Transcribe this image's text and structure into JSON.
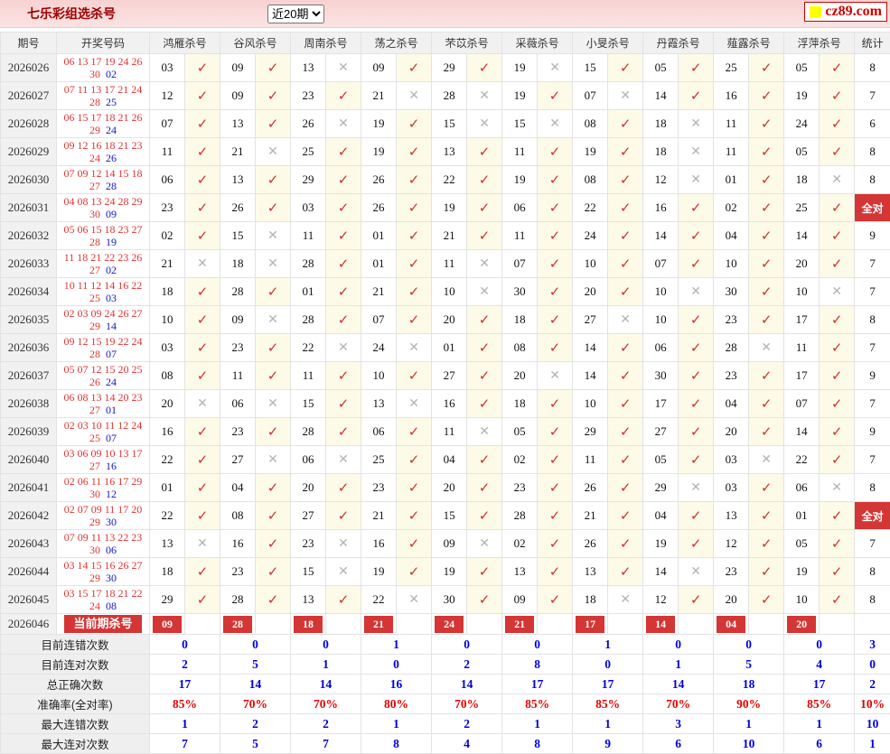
{
  "header": {
    "title": "七乐彩组选杀号",
    "period_option": "近20期",
    "logo_text": "cz89.com"
  },
  "table": {
    "col_headers": [
      "期号",
      "开奖号码"
    ],
    "expert_headers": [
      "鸿雁杀号",
      "谷风杀号",
      "周南杀号",
      "荡之杀号",
      "芣苡杀号",
      "采薇杀号",
      "小旻杀号",
      "丹霞杀号",
      "薤露杀号",
      "浮萍杀号"
    ],
    "stat_header": "统计",
    "all_correct_label": "全对",
    "check_icon": "✓",
    "cross_icon": "✕",
    "rows": [
      {
        "period": "2026026",
        "main": "06 13 17 19 24 26",
        "tail": "30",
        "special": "02",
        "picks": [
          "03",
          "09",
          "13",
          "09",
          "29",
          "19",
          "15",
          "05",
          "25",
          "05"
        ],
        "marks": [
          "v",
          "v",
          "x",
          "v",
          "v",
          "x",
          "v",
          "v",
          "v",
          "v"
        ],
        "stat": "8"
      },
      {
        "period": "2026027",
        "main": "07 11 13 17 21 24",
        "tail": "28",
        "special": "25",
        "picks": [
          "12",
          "09",
          "23",
          "21",
          "28",
          "19",
          "07",
          "14",
          "16",
          "19"
        ],
        "marks": [
          "v",
          "v",
          "v",
          "x",
          "x",
          "v",
          "x",
          "v",
          "v",
          "v"
        ],
        "stat": "7"
      },
      {
        "period": "2026028",
        "main": "06 15 17 18 21 26",
        "tail": "29",
        "special": "24",
        "picks": [
          "07",
          "13",
          "26",
          "19",
          "15",
          "15",
          "08",
          "18",
          "11",
          "24"
        ],
        "marks": [
          "v",
          "v",
          "x",
          "v",
          "x",
          "x",
          "v",
          "x",
          "v",
          "v"
        ],
        "stat": "6"
      },
      {
        "period": "2026029",
        "main": "09 12 16 18 21 23",
        "tail": "24",
        "special": "26",
        "picks": [
          "11",
          "21",
          "25",
          "19",
          "13",
          "11",
          "19",
          "18",
          "11",
          "05"
        ],
        "marks": [
          "v",
          "x",
          "v",
          "v",
          "v",
          "v",
          "v",
          "x",
          "v",
          "v"
        ],
        "stat": "8"
      },
      {
        "period": "2026030",
        "main": "07 09 12 14 15 18",
        "tail": "27",
        "special": "28",
        "picks": [
          "06",
          "13",
          "29",
          "26",
          "22",
          "19",
          "08",
          "12",
          "01",
          "18"
        ],
        "marks": [
          "v",
          "v",
          "v",
          "v",
          "v",
          "v",
          "v",
          "x",
          "v",
          "x"
        ],
        "stat": "8"
      },
      {
        "period": "2026031",
        "main": "04 08 13 24 28 29",
        "tail": "30",
        "special": "09",
        "picks": [
          "23",
          "26",
          "03",
          "26",
          "19",
          "06",
          "22",
          "16",
          "02",
          "25"
        ],
        "marks": [
          "v",
          "v",
          "v",
          "v",
          "v",
          "v",
          "v",
          "v",
          "v",
          "v"
        ],
        "stat": "全对"
      },
      {
        "period": "2026032",
        "main": "05 06 15 18 23 27",
        "tail": "28",
        "special": "19",
        "picks": [
          "02",
          "15",
          "11",
          "01",
          "21",
          "11",
          "24",
          "14",
          "04",
          "14"
        ],
        "marks": [
          "v",
          "x",
          "v",
          "v",
          "v",
          "v",
          "v",
          "v",
          "v",
          "v"
        ],
        "stat": "9"
      },
      {
        "period": "2026033",
        "main": "11 18 21 22 23 26",
        "tail": "27",
        "special": "02",
        "picks": [
          "21",
          "18",
          "28",
          "01",
          "11",
          "07",
          "10",
          "07",
          "10",
          "20"
        ],
        "marks": [
          "x",
          "x",
          "v",
          "v",
          "x",
          "v",
          "v",
          "v",
          "v",
          "v"
        ],
        "stat": "7"
      },
      {
        "period": "2026034",
        "main": "10 11 12 14 16 22",
        "tail": "25",
        "special": "03",
        "picks": [
          "18",
          "28",
          "01",
          "21",
          "10",
          "30",
          "20",
          "10",
          "30",
          "10"
        ],
        "marks": [
          "v",
          "v",
          "v",
          "v",
          "x",
          "v",
          "v",
          "x",
          "v",
          "x"
        ],
        "stat": "7"
      },
      {
        "period": "2026035",
        "main": "02 03 09 24 26 27",
        "tail": "29",
        "special": "14",
        "picks": [
          "10",
          "09",
          "28",
          "07",
          "20",
          "18",
          "27",
          "10",
          "23",
          "17"
        ],
        "marks": [
          "v",
          "x",
          "v",
          "v",
          "v",
          "v",
          "x",
          "v",
          "v",
          "v"
        ],
        "stat": "8"
      },
      {
        "period": "2026036",
        "main": "09 12 15 19 22 24",
        "tail": "28",
        "special": "07",
        "picks": [
          "03",
          "23",
          "22",
          "24",
          "01",
          "08",
          "14",
          "06",
          "28",
          "11"
        ],
        "marks": [
          "v",
          "v",
          "x",
          "x",
          "v",
          "v",
          "v",
          "v",
          "x",
          "v"
        ],
        "stat": "7"
      },
      {
        "period": "2026037",
        "main": "05 07 12 15 20 25",
        "tail": "26",
        "special": "24",
        "picks": [
          "08",
          "11",
          "11",
          "10",
          "27",
          "20",
          "14",
          "30",
          "23",
          "17"
        ],
        "marks": [
          "v",
          "v",
          "v",
          "v",
          "v",
          "x",
          "v",
          "v",
          "v",
          "v"
        ],
        "stat": "9"
      },
      {
        "period": "2026038",
        "main": "06 08 13 14 20 23",
        "tail": "27",
        "special": "01",
        "picks": [
          "20",
          "06",
          "15",
          "13",
          "16",
          "18",
          "10",
          "17",
          "04",
          "07"
        ],
        "marks": [
          "x",
          "x",
          "v",
          "x",
          "v",
          "v",
          "v",
          "v",
          "v",
          "v"
        ],
        "stat": "7"
      },
      {
        "period": "2026039",
        "main": "02 03 10 11 12 24",
        "tail": "25",
        "special": "07",
        "picks": [
          "16",
          "23",
          "28",
          "06",
          "11",
          "05",
          "29",
          "27",
          "20",
          "14"
        ],
        "marks": [
          "v",
          "v",
          "v",
          "v",
          "x",
          "v",
          "v",
          "v",
          "v",
          "v"
        ],
        "stat": "9"
      },
      {
        "period": "2026040",
        "main": "03 06 09 10 13 17",
        "tail": "27",
        "special": "16",
        "picks": [
          "22",
          "27",
          "06",
          "25",
          "04",
          "02",
          "11",
          "05",
          "03",
          "22"
        ],
        "marks": [
          "v",
          "x",
          "x",
          "v",
          "v",
          "v",
          "v",
          "v",
          "x",
          "v"
        ],
        "stat": "7"
      },
      {
        "period": "2026041",
        "main": "02 06 11 16 17 29",
        "tail": "30",
        "special": "12",
        "picks": [
          "01",
          "04",
          "20",
          "23",
          "20",
          "23",
          "26",
          "29",
          "03",
          "06"
        ],
        "marks": [
          "v",
          "v",
          "v",
          "v",
          "v",
          "v",
          "v",
          "x",
          "v",
          "x"
        ],
        "stat": "8"
      },
      {
        "period": "2026042",
        "main": "02 07 09 11 17 20",
        "tail": "29",
        "special": "30",
        "picks": [
          "22",
          "08",
          "27",
          "21",
          "15",
          "28",
          "21",
          "04",
          "13",
          "01"
        ],
        "marks": [
          "v",
          "v",
          "v",
          "v",
          "v",
          "v",
          "v",
          "v",
          "v",
          "v"
        ],
        "stat": "全对"
      },
      {
        "period": "2026043",
        "main": "07 09 11 13 22 23",
        "tail": "30",
        "special": "06",
        "picks": [
          "13",
          "16",
          "23",
          "16",
          "09",
          "02",
          "26",
          "19",
          "12",
          "05"
        ],
        "marks": [
          "x",
          "v",
          "x",
          "v",
          "x",
          "v",
          "v",
          "v",
          "v",
          "v"
        ],
        "stat": "7"
      },
      {
        "period": "2026044",
        "main": "03 14 15 16 26 27",
        "tail": "29",
        "special": "30",
        "picks": [
          "18",
          "23",
          "15",
          "19",
          "19",
          "13",
          "13",
          "14",
          "23",
          "19"
        ],
        "marks": [
          "v",
          "v",
          "x",
          "v",
          "v",
          "v",
          "v",
          "x",
          "v",
          "v"
        ],
        "stat": "8"
      },
      {
        "period": "2026045",
        "main": "03 15 17 18 21 22",
        "tail": "24",
        "special": "08",
        "picks": [
          "29",
          "28",
          "13",
          "22",
          "30",
          "09",
          "18",
          "12",
          "20",
          "10"
        ],
        "marks": [
          "v",
          "v",
          "v",
          "x",
          "v",
          "v",
          "x",
          "v",
          "v",
          "v"
        ],
        "stat": "8"
      }
    ],
    "current": {
      "period": "2026046",
      "label": "当前期杀号",
      "kills": [
        "09",
        "28",
        "18",
        "21",
        "24",
        "21",
        "17",
        "14",
        "04",
        "20"
      ],
      "stat": ""
    },
    "summary": [
      {
        "label": "目前连错次数",
        "values": [
          "0",
          "0",
          "0",
          "1",
          "0",
          "0",
          "1",
          "0",
          "0",
          "0"
        ],
        "total": "3",
        "color": "blue"
      },
      {
        "label": "目前连对次数",
        "values": [
          "2",
          "5",
          "1",
          "0",
          "2",
          "8",
          "0",
          "1",
          "5",
          "4"
        ],
        "total": "0",
        "color": "blue"
      },
      {
        "label": "总正确次数",
        "values": [
          "17",
          "14",
          "14",
          "16",
          "14",
          "17",
          "17",
          "14",
          "18",
          "17"
        ],
        "total": "2",
        "color": "blue"
      },
      {
        "label": "准确率(全对率)",
        "values": [
          "85%",
          "70%",
          "70%",
          "80%",
          "70%",
          "85%",
          "85%",
          "70%",
          "90%",
          "85%"
        ],
        "total": "10%",
        "color": "red"
      },
      {
        "label": "最大连错次数",
        "values": [
          "1",
          "2",
          "2",
          "1",
          "2",
          "1",
          "1",
          "3",
          "1",
          "1"
        ],
        "total": "10",
        "color": "blue"
      },
      {
        "label": "最大连对次数",
        "values": [
          "7",
          "5",
          "7",
          "8",
          "4",
          "8",
          "9",
          "6",
          "10",
          "6"
        ],
        "total": "1",
        "color": "blue"
      }
    ]
  }
}
